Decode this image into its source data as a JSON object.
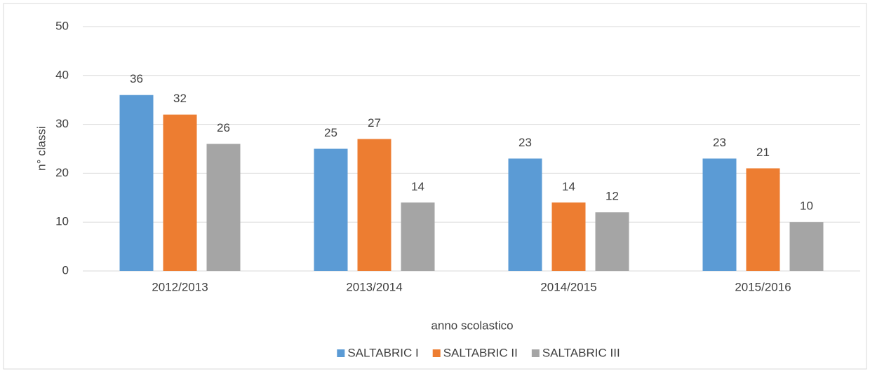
{
  "chart_data": {
    "type": "bar",
    "x_label": "anno scolastico",
    "y_label": "n° classi",
    "categories": [
      "2012/2013",
      "2013/2014",
      "2014/2015",
      "2015/2016"
    ],
    "series": [
      {
        "name": "SALTABRIC I",
        "color": "#5b9bd5",
        "values": [
          36,
          25,
          23,
          23
        ]
      },
      {
        "name": "SALTABRIC II",
        "color": "#ed7d31",
        "values": [
          32,
          27,
          14,
          21
        ]
      },
      {
        "name": "SALTABRIC III",
        "color": "#a5a5a5",
        "values": [
          26,
          14,
          12,
          10
        ]
      }
    ],
    "ylim": [
      0,
      50
    ],
    "yticks": [
      0,
      10,
      20,
      30,
      40,
      50
    ],
    "grid": true,
    "legend": "bottom"
  }
}
